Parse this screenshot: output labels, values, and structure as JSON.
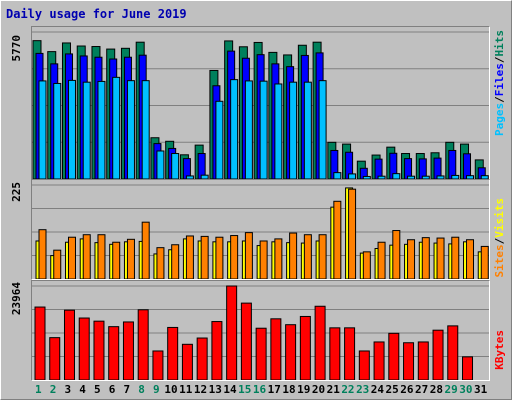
{
  "title": "Daily usage for June 2019",
  "colors": {
    "hits": "#00805c",
    "files": "#0000ff",
    "pages": "#00c0ff",
    "visits": "#ffff00",
    "sites": "#ff8000",
    "kbytes": "#ff0000",
    "weekday_label": "#000000",
    "weekend_label": "#00805c"
  },
  "panels": {
    "top": {
      "ymax_label": "5770",
      "right_labels": [
        "Pages",
        "/",
        "Files",
        "/",
        "Hits"
      ]
    },
    "mid": {
      "ymax_label": "225",
      "right_labels": [
        "Sites",
        "/",
        "Visits"
      ]
    },
    "bot": {
      "ymax_label": "23964",
      "right_labels": [
        "KBytes"
      ]
    }
  },
  "chart_data": {
    "type": "bar",
    "title": "Daily usage for June 2019",
    "categories": [
      "1",
      "2",
      "3",
      "4",
      "5",
      "6",
      "7",
      "8",
      "9",
      "10",
      "11",
      "12",
      "13",
      "14",
      "15",
      "16",
      "17",
      "18",
      "19",
      "20",
      "21",
      "22",
      "23",
      "24",
      "25",
      "26",
      "27",
      "28",
      "29",
      "30",
      "31"
    ],
    "weekend_days": [
      1,
      2,
      8,
      9,
      15,
      16,
      22,
      23,
      29,
      30
    ],
    "charts": [
      {
        "name": "top",
        "ylim": [
          0,
          5770
        ],
        "series": [
          {
            "name": "Hits",
            "values": [
              5430,
              5000,
              5340,
              5220,
              5200,
              5100,
              5130,
              5370,
              1620,
              1480,
              950,
              1330,
              4260,
              5420,
              5190,
              5360,
              4970,
              4870,
              5250,
              5370,
              1440,
              1370,
              700,
              940,
              1250,
              1000,
              1000,
              1030,
              1440,
              1370,
              750
            ]
          },
          {
            "name": "Files",
            "values": [
              4930,
              4520,
              4910,
              4830,
              4780,
              4710,
              4780,
              4860,
              1390,
              1200,
              800,
              1000,
              3660,
              5020,
              4740,
              4880,
              4520,
              4410,
              4850,
              4950,
              1120,
              1050,
              420,
              780,
              1010,
              800,
              790,
              820,
              1120,
              990,
              440
            ]
          },
          {
            "name": "Pages",
            "values": [
              3850,
              3750,
              3870,
              3800,
              3830,
              3990,
              3860,
              3860,
              1100,
              1000,
              120,
              150,
              3050,
              3900,
              3850,
              3840,
              3730,
              3800,
              3800,
              3860,
              250,
              200,
              100,
              110,
              210,
              110,
              110,
              120,
              140,
              130,
              130
            ]
          }
        ]
      },
      {
        "name": "mid",
        "ylim": [
          0,
          225
        ],
        "series": [
          {
            "name": "Visits",
            "values": [
              91,
              56,
              88,
              96,
              87,
              83,
              89,
              90,
              60,
              70,
              96,
              91,
              89,
              89,
              91,
              80,
              89,
              87,
              86,
              91,
              172,
              218,
              62,
              73,
              81,
              83,
              88,
              86,
              84,
              89,
              65
            ]
          },
          {
            "name": "Sites",
            "values": [
              118,
              69,
              100,
              106,
              106,
              88,
              95,
              136,
              75,
              82,
              103,
              102,
              100,
              104,
              111,
              91,
              96,
              110,
              106,
              106,
              186,
              215,
              65,
              88,
              116,
              94,
              99,
              98,
              100,
              94,
              78
            ]
          }
        ]
      },
      {
        "name": "bot",
        "ylim": [
          0,
          23964
        ],
        "series": [
          {
            "name": "KBytes",
            "values": [
              18600,
              10800,
              17800,
              15800,
              15000,
              13600,
              14800,
              17900,
              7400,
              13400,
              9100,
              10700,
              14900,
              23964,
              19600,
              13200,
              15600,
              14100,
              16200,
              18800,
              13300,
              13300,
              7400,
              9700,
              11900,
              9500,
              9700,
              12700,
              13800,
              5900,
              0
            ]
          }
        ]
      }
    ]
  }
}
